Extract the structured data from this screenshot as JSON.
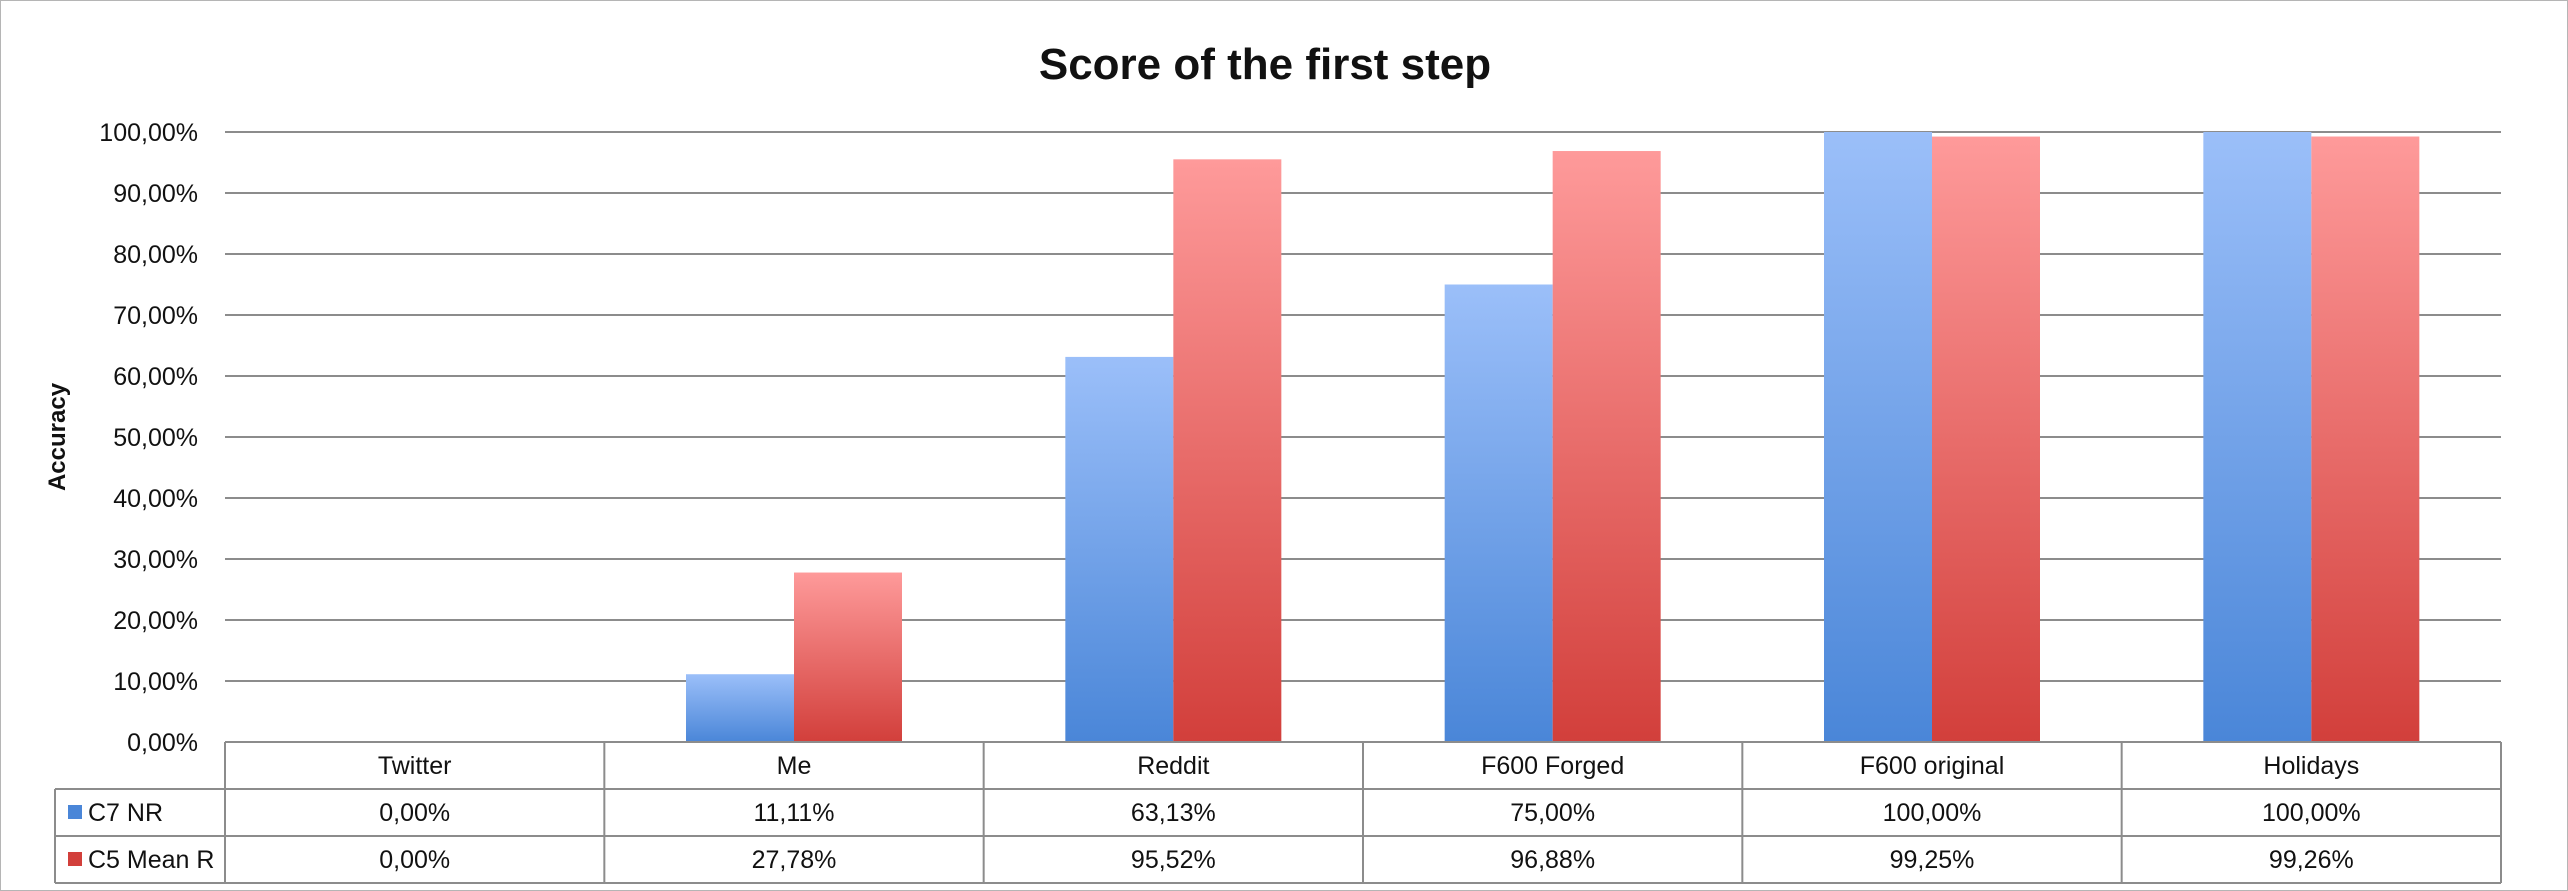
{
  "chart_data": {
    "type": "bar",
    "title": "Score of the first step",
    "ylabel": "Accuracy",
    "xlabel": "",
    "ylim": [
      0,
      100
    ],
    "y_ticks": [
      "0,00%",
      "10,00%",
      "20,00%",
      "30,00%",
      "40,00%",
      "50,00%",
      "60,00%",
      "70,00%",
      "80,00%",
      "90,00%",
      "100,00%"
    ],
    "grid": true,
    "legend": "data-table-left",
    "categories": [
      "Twitter",
      "Me",
      "Reddit",
      "F600 Forged",
      "F600 original",
      "Holidays"
    ],
    "series": [
      {
        "name": "C7 NR",
        "color": "#4a86d8",
        "color_light": "#9bbff9",
        "values": [
          0,
          11.11,
          63.13,
          75.0,
          100.0,
          100.0
        ],
        "labels": [
          "0,00%",
          "11,11%",
          "63,13%",
          "75,00%",
          "100,00%",
          "100,00%"
        ]
      },
      {
        "name": "C5 Mean R",
        "color": "#d23f3b",
        "color_light": "#fe9a9a",
        "values": [
          0,
          27.78,
          95.52,
          96.88,
          99.25,
          99.26
        ],
        "labels": [
          "0,00%",
          "27,78%",
          "95,52%",
          "96,88%",
          "99,25%",
          "99,26%"
        ]
      }
    ]
  }
}
